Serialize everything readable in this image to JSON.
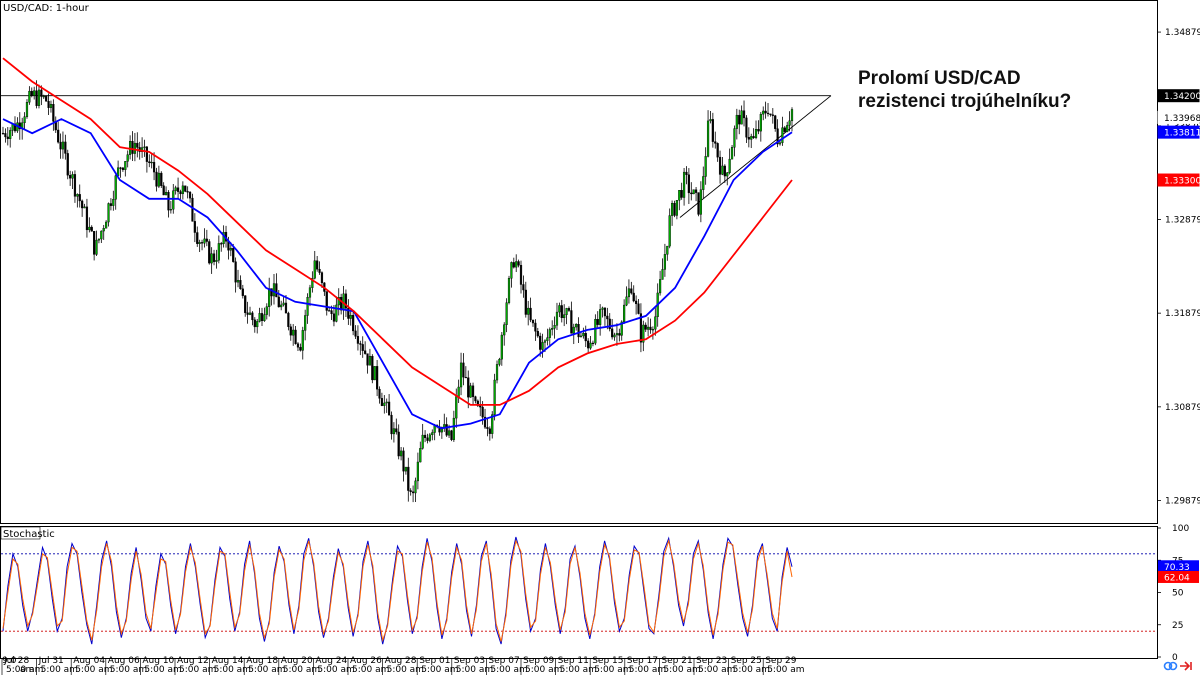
{
  "chart_data": [
    {
      "type": "candlestick",
      "title": "USD/CAD: 1-hour",
      "annotation": [
        "Prolomí USD/CAD",
        "rezistenci trojúhelníku?"
      ],
      "ylim": [
        1.2965,
        1.352
      ],
      "y_ticks": [
        {
          "value": 1.34879,
          "label": "1.34879"
        },
        {
          "value": 1.33879,
          "label": "1.33879"
        },
        {
          "value": 1.32879,
          "label": "1.32879"
        },
        {
          "value": 1.31879,
          "label": "1.31879"
        },
        {
          "value": 1.30879,
          "label": "1.30879"
        },
        {
          "value": 1.29879,
          "label": "1.29879"
        }
      ],
      "price_tags": [
        {
          "value": 1.342,
          "label": "1.34200",
          "bg": "#000000",
          "fg": "#ffffff"
        },
        {
          "value": 1.33968,
          "label": "1.33968",
          "bg": "#ffffff",
          "fg": "#000000"
        },
        {
          "value": 1.33811,
          "label": "1.33811",
          "bg": "#0000ff",
          "fg": "#ffffff"
        },
        {
          "value": 1.333,
          "label": "1.33300",
          "bg": "#ff0000",
          "fg": "#ffffff"
        }
      ],
      "resistance_level": 1.342,
      "x_labels": [
        "9:0",
        "Jul 28",
        "Jul 31",
        "Aug 04",
        "Aug 06",
        "Aug 10",
        "Aug 12",
        "Aug 14",
        "Aug 18",
        "Aug 20",
        "Aug 24",
        "Aug 26",
        "Aug 28",
        "Sep 01",
        "Sep 03",
        "Sep 07",
        "Sep 09",
        "Sep 11",
        "Sep 15",
        "Sep 17",
        "Sep 21",
        "Sep 23",
        "Sep 25",
        "Sep 29"
      ],
      "x_sublabel": "5:00 am",
      "x_sublabel_first": "am",
      "price_path": [
        [
          0,
          1.338
        ],
        [
          3,
          1.339
        ],
        [
          6,
          1.342
        ],
        [
          9,
          1.3415
        ],
        [
          12,
          1.3365
        ],
        [
          16,
          1.3305
        ],
        [
          19,
          1.3255
        ],
        [
          21,
          1.329
        ],
        [
          24,
          1.3345
        ],
        [
          27,
          1.337
        ],
        [
          31,
          1.334
        ],
        [
          34,
          1.33
        ],
        [
          37,
          1.333
        ],
        [
          40,
          1.327
        ],
        [
          43,
          1.3245
        ],
        [
          46,
          1.327
        ],
        [
          49,
          1.32
        ],
        [
          52,
          1.3175
        ],
        [
          55,
          1.3215
        ],
        [
          58,
          1.3185
        ],
        [
          61,
          1.3155
        ],
        [
          64,
          1.3245
        ],
        [
          67,
          1.3185
        ],
        [
          70,
          1.32
        ],
        [
          73,
          1.3165
        ],
        [
          76,
          1.3125
        ],
        [
          79,
          1.308
        ],
        [
          82,
          1.303
        ],
        [
          84,
          1.2985
        ],
        [
          86,
          1.305
        ],
        [
          89,
          1.3075
        ],
        [
          92,
          1.305
        ],
        [
          94,
          1.313
        ],
        [
          97,
          1.3085
        ],
        [
          100,
          1.307
        ],
        [
          103,
          1.319
        ],
        [
          105,
          1.325
        ],
        [
          108,
          1.318
        ],
        [
          111,
          1.315
        ],
        [
          114,
          1.3195
        ],
        [
          117,
          1.3175
        ],
        [
          120,
          1.3155
        ],
        [
          123,
          1.3185
        ],
        [
          126,
          1.3165
        ],
        [
          129,
          1.322
        ],
        [
          131,
          1.3165
        ],
        [
          134,
          1.3185
        ],
        [
          137,
          1.329
        ],
        [
          140,
          1.333
        ],
        [
          143,
          1.33
        ],
        [
          145,
          1.3395
        ],
        [
          148,
          1.333
        ],
        [
          151,
          1.34
        ],
        [
          154,
          1.337
        ],
        [
          157,
          1.341
        ],
        [
          159,
          1.3375
        ],
        [
          162,
          1.3405
        ]
      ],
      "series": [
        {
          "name": "",
          "color": "#0000ff",
          "values": [
            [
              0,
              1.3395
            ],
            [
              6,
              1.338
            ],
            [
              12,
              1.3395
            ],
            [
              18,
              1.338
            ],
            [
              24,
              1.333
            ],
            [
              30,
              1.331
            ],
            [
              36,
              1.331
            ],
            [
              42,
              1.329
            ],
            [
              48,
              1.3255
            ],
            [
              54,
              1.3215
            ],
            [
              60,
              1.32
            ],
            [
              66,
              1.3195
            ],
            [
              72,
              1.319
            ],
            [
              78,
              1.3135
            ],
            [
              84,
              1.308
            ],
            [
              90,
              1.3065
            ],
            [
              96,
              1.307
            ],
            [
              102,
              1.308
            ],
            [
              108,
              1.3135
            ],
            [
              114,
              1.316
            ],
            [
              120,
              1.317
            ],
            [
              126,
              1.3175
            ],
            [
              132,
              1.3185
            ],
            [
              138,
              1.3215
            ],
            [
              144,
              1.327
            ],
            [
              150,
              1.333
            ],
            [
              156,
              1.336
            ],
            [
              162,
              1.3381
            ]
          ]
        },
        {
          "name": "",
          "color": "#ff0000",
          "values": [
            [
              0,
              1.346
            ],
            [
              6,
              1.3435
            ],
            [
              12,
              1.3415
            ],
            [
              18,
              1.3395
            ],
            [
              24,
              1.3365
            ],
            [
              30,
              1.336
            ],
            [
              36,
              1.334
            ],
            [
              42,
              1.3315
            ],
            [
              48,
              1.3285
            ],
            [
              54,
              1.3255
            ],
            [
              60,
              1.3235
            ],
            [
              66,
              1.3215
            ],
            [
              72,
              1.319
            ],
            [
              78,
              1.316
            ],
            [
              84,
              1.313
            ],
            [
              90,
              1.311
            ],
            [
              96,
              1.309
            ],
            [
              102,
              1.309
            ],
            [
              108,
              1.3105
            ],
            [
              114,
              1.313
            ],
            [
              120,
              1.3145
            ],
            [
              126,
              1.3155
            ],
            [
              132,
              1.316
            ],
            [
              138,
              1.318
            ],
            [
              144,
              1.321
            ],
            [
              150,
              1.325
            ],
            [
              156,
              1.329
            ],
            [
              162,
              1.333
            ]
          ]
        }
      ],
      "triangle_support": [
        [
          139,
          1.329
        ],
        [
          162,
          1.3395
        ],
        [
          170,
          1.342
        ]
      ]
    },
    {
      "type": "line",
      "title": "Stochastic",
      "ylim": [
        0,
        100
      ],
      "y_ticks": [
        {
          "value": 100,
          "label": "100"
        },
        {
          "value": 75,
          "label": "75"
        },
        {
          "value": 50,
          "label": "50"
        },
        {
          "value": 25,
          "label": "25"
        },
        {
          "value": 0,
          "label": "0"
        }
      ],
      "levels": [
        {
          "value": 80,
          "color": "#0000aa"
        },
        {
          "value": 20,
          "color": "#cc0000"
        }
      ],
      "price_tags": [
        {
          "value": 70.33,
          "label": "70.33",
          "bg": "#0000ff",
          "fg": "#ffffff"
        },
        {
          "value": 62.04,
          "label": "62.04",
          "bg": "#ff0000",
          "fg": "#ffffff"
        }
      ],
      "series": [
        {
          "name": "",
          "color": "#0000cc",
          "values": [
            20,
            55,
            80,
            70,
            40,
            20,
            35,
            60,
            85,
            75,
            45,
            20,
            30,
            70,
            88,
            80,
            50,
            25,
            10,
            40,
            75,
            90,
            70,
            35,
            15,
            30,
            65,
            85,
            60,
            30,
            20,
            55,
            80,
            72,
            40,
            18,
            35,
            70,
            88,
            70,
            40,
            15,
            25,
            60,
            85,
            78,
            45,
            20,
            35,
            72,
            90,
            65,
            30,
            12,
            28,
            66,
            86,
            74,
            40,
            18,
            40,
            80,
            92,
            70,
            35,
            15,
            30,
            62,
            84,
            70,
            38,
            16,
            34,
            74,
            90,
            68,
            30,
            10,
            26,
            60,
            86,
            78,
            44,
            18,
            32,
            70,
            92,
            74,
            38,
            14,
            30,
            66,
            88,
            72,
            36,
            16,
            40,
            78,
            90,
            60,
            22,
            10,
            35,
            75,
            93,
            80,
            45,
            20,
            30,
            68,
            88,
            70,
            40,
            18,
            38,
            76,
            86,
            62,
            30,
            14,
            34,
            70,
            90,
            76,
            42,
            20,
            30,
            64,
            86,
            80,
            50,
            22,
            18,
            48,
            82,
            92,
            70,
            40,
            24,
            44,
            80,
            90,
            68,
            34,
            14,
            36,
            72,
            92,
            86,
            56,
            30,
            16,
            40,
            78,
            88,
            60,
            30,
            20,
            62,
            85,
            70
          ]
        },
        {
          "name": "",
          "color": "#ff6600",
          "values": [
            22,
            50,
            76,
            72,
            45,
            24,
            33,
            56,
            80,
            77,
            50,
            24,
            28,
            64,
            85,
            82,
            55,
            28,
            13,
            36,
            70,
            88,
            74,
            40,
            18,
            28,
            60,
            82,
            64,
            34,
            22,
            50,
            76,
            74,
            44,
            21,
            33,
            66,
            85,
            73,
            44,
            18,
            24,
            56,
            82,
            80,
            50,
            23,
            33,
            67,
            87,
            68,
            34,
            15,
            26,
            62,
            83,
            76,
            44,
            21,
            37,
            75,
            90,
            73,
            39,
            18,
            28,
            58,
            81,
            72,
            42,
            19,
            32,
            70,
            87,
            71,
            34,
            13,
            24,
            56,
            82,
            80,
            48,
            21,
            30,
            66,
            89,
            77,
            42,
            17,
            28,
            62,
            85,
            75,
            40,
            18,
            37,
            74,
            88,
            64,
            26,
            12,
            32,
            71,
            90,
            82,
            49,
            23,
            28,
            64,
            85,
            73,
            44,
            21,
            35,
            72,
            85,
            65,
            34,
            17,
            32,
            66,
            87,
            78,
            46,
            23,
            28,
            60,
            83,
            81,
            54,
            25,
            19,
            44,
            78,
            90,
            73,
            44,
            27,
            41,
            76,
            88,
            71,
            38,
            17,
            33,
            68,
            89,
            87,
            60,
            34,
            19,
            37,
            74,
            86,
            63,
            34,
            22,
            58,
            82,
            62
          ]
        }
      ]
    }
  ]
}
